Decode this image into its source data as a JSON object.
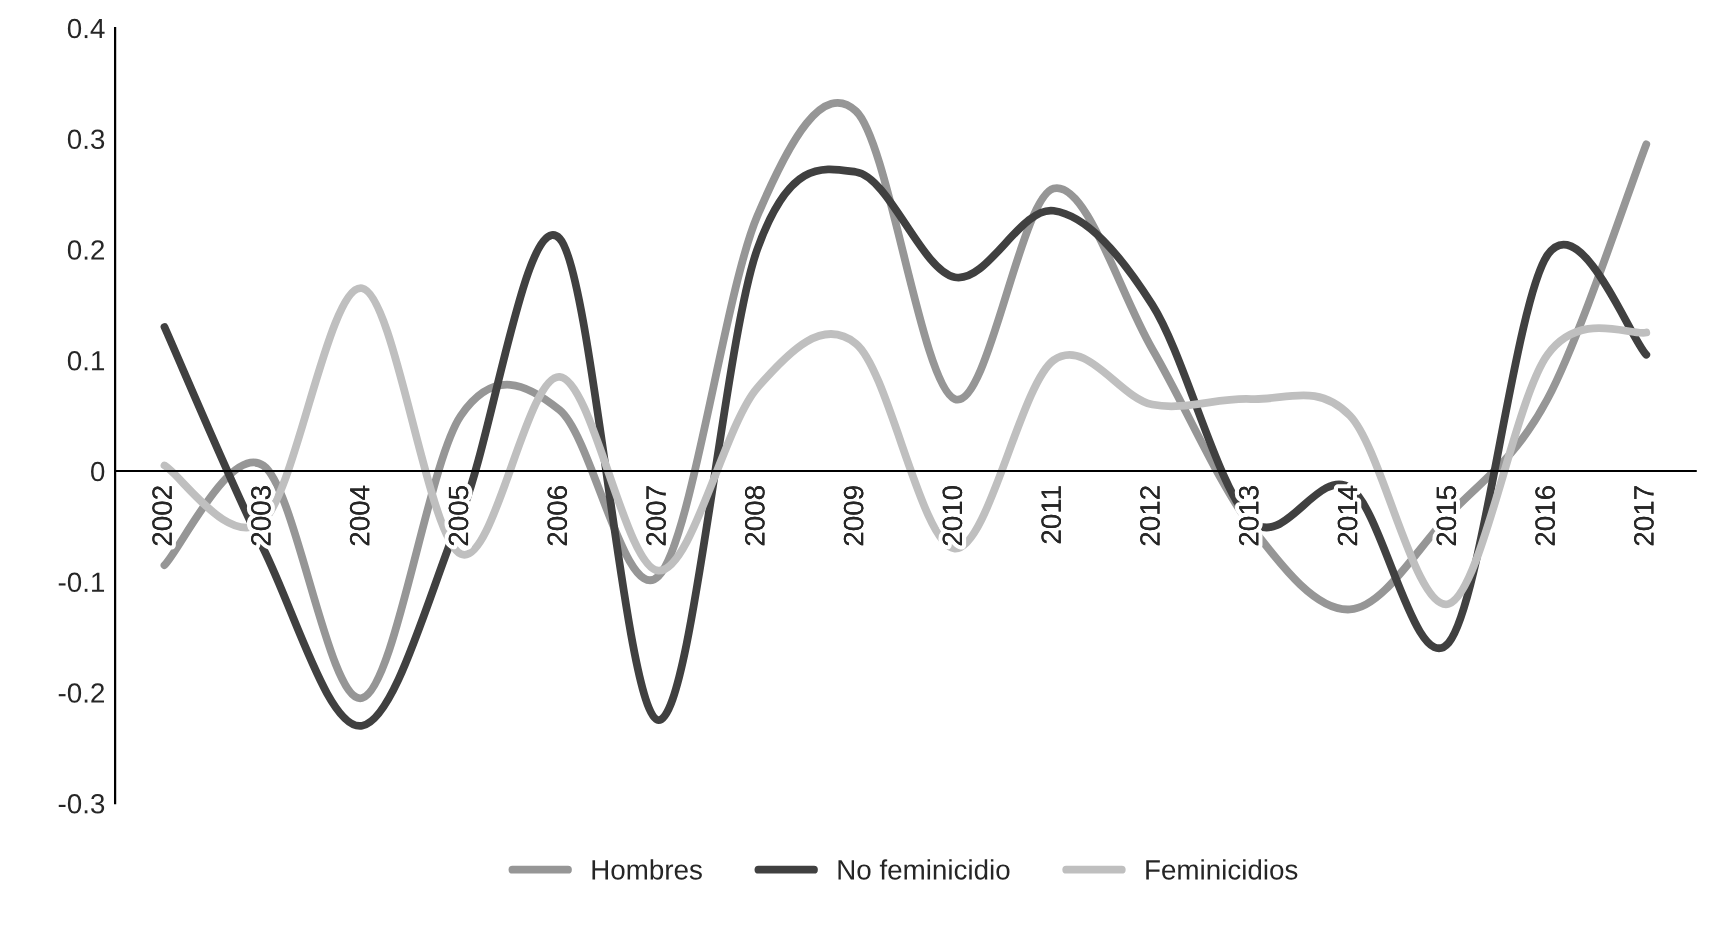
{
  "chart_data": {
    "type": "line",
    "categories": [
      "2002",
      "2003",
      "2004",
      "2005",
      "2006",
      "2007",
      "2008",
      "2009",
      "2010",
      "2011",
      "2012",
      "2013",
      "2014",
      "2015",
      "2016",
      "2017"
    ],
    "series": [
      {
        "name": "Hombres",
        "color": "#969696",
        "values": [
          -0.085,
          0.005,
          -0.205,
          0.05,
          0.055,
          -0.095,
          0.23,
          0.325,
          0.065,
          0.255,
          0.11,
          -0.05,
          -0.125,
          -0.04,
          0.065,
          0.295
        ]
      },
      {
        "name": "No feminicidio",
        "color": "#404040",
        "values": [
          0.13,
          -0.07,
          -0.23,
          -0.04,
          0.21,
          -0.225,
          0.2,
          0.27,
          0.175,
          0.235,
          0.15,
          -0.045,
          -0.015,
          -0.155,
          0.195,
          0.105
        ]
      },
      {
        "name": "Feminicidios",
        "color": "#bfbfbf",
        "values": [
          0.005,
          -0.045,
          0.165,
          -0.075,
          0.085,
          -0.09,
          0.075,
          0.115,
          -0.07,
          0.1,
          0.06,
          0.065,
          0.05,
          -0.12,
          0.105,
          0.125
        ]
      }
    ],
    "ylim": [
      -0.3,
      0.4
    ],
    "yticks": [
      -0.3,
      -0.2,
      -0.1,
      0,
      0.1,
      0.2,
      0.3,
      0.4
    ],
    "grid": false,
    "legend": "bottom",
    "marker": "none",
    "line_style": "solid"
  }
}
